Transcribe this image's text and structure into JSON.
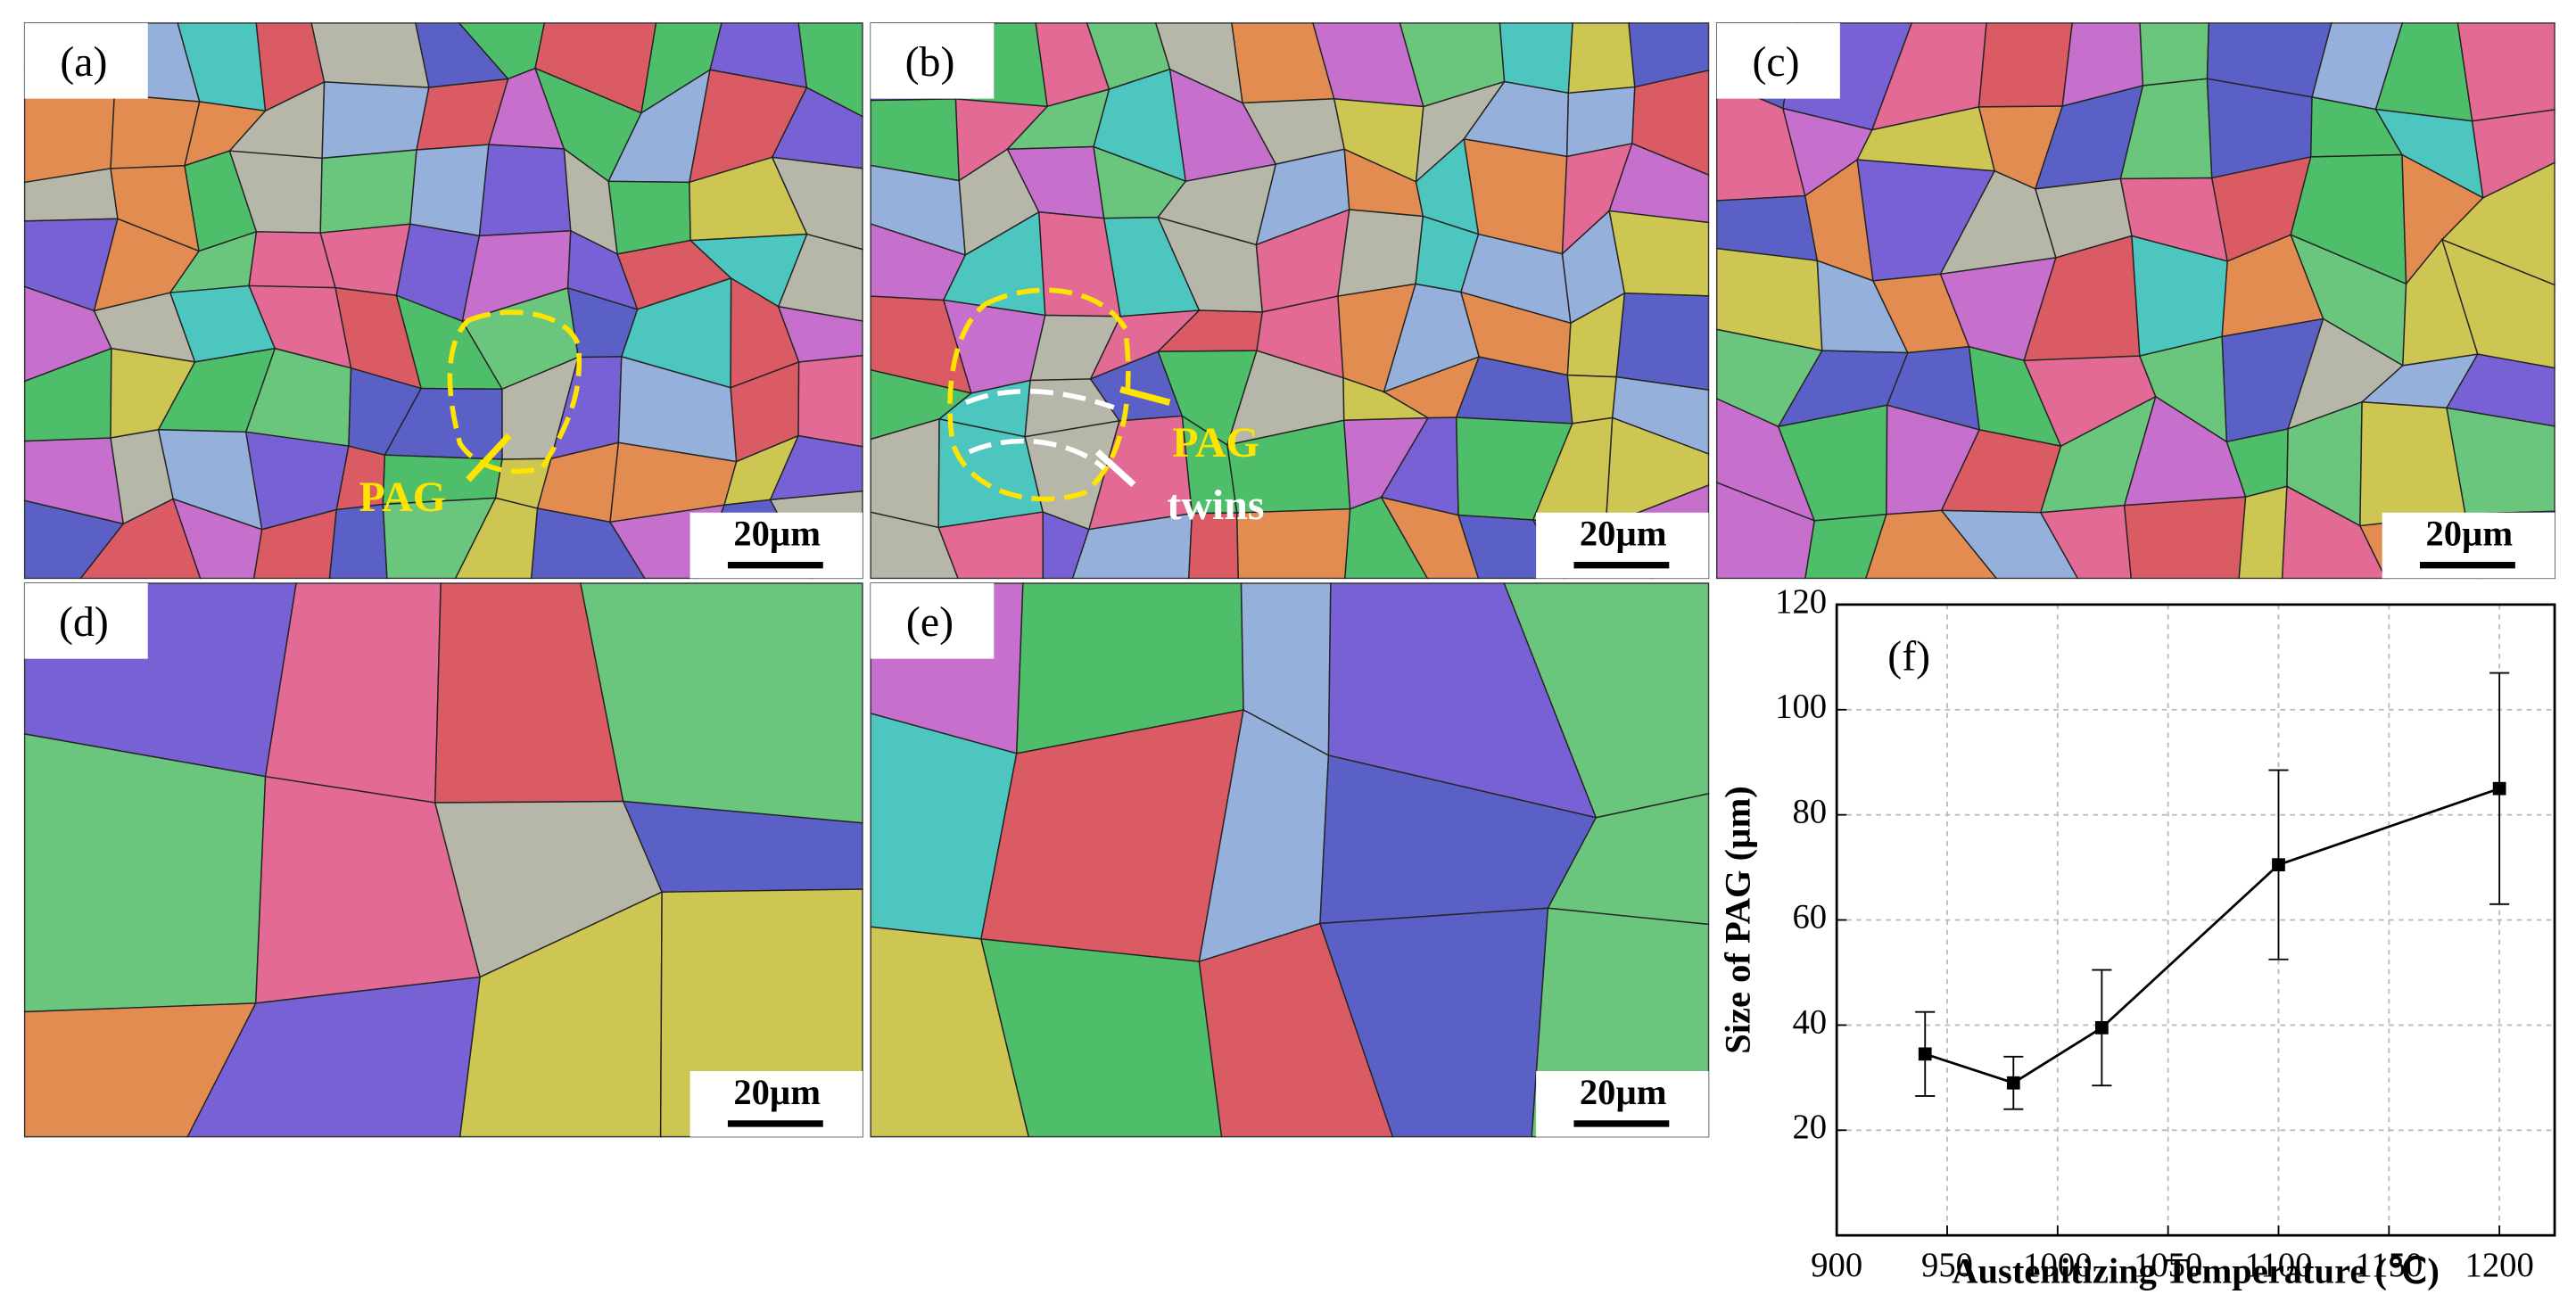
{
  "panels": [
    {
      "label": "(a)",
      "scale_bar": "20µm",
      "annotations": [
        "PAG"
      ]
    },
    {
      "label": "(b)",
      "scale_bar": "20µm",
      "annotations": [
        "PAG",
        "twins"
      ]
    },
    {
      "label": "(c)",
      "scale_bar": "20µm"
    },
    {
      "label": "(d)",
      "scale_bar": "20µm"
    },
    {
      "label": "(e)",
      "scale_bar": "20µm"
    }
  ],
  "chart_data": {
    "type": "line",
    "label": "(f)",
    "x_label": "Austenitizing Temperature (℃)",
    "y_label": "Size of PAG (µm)",
    "x": [
      940,
      980,
      1020,
      1100,
      1200
    ],
    "series": [
      {
        "name": "PAG size",
        "color": "#000000",
        "values": [
          34.5,
          29,
          39.5,
          70.5,
          85
        ],
        "errors": [
          8,
          5,
          11,
          18,
          22
        ]
      }
    ],
    "xlim": [
      900,
      1225
    ],
    "xticks": [
      900,
      950,
      1000,
      1050,
      1100,
      1150,
      1200
    ],
    "ylim": [
      0,
      120
    ],
    "yticks": [
      20,
      40,
      60,
      80,
      100,
      120
    ],
    "grid": true
  }
}
